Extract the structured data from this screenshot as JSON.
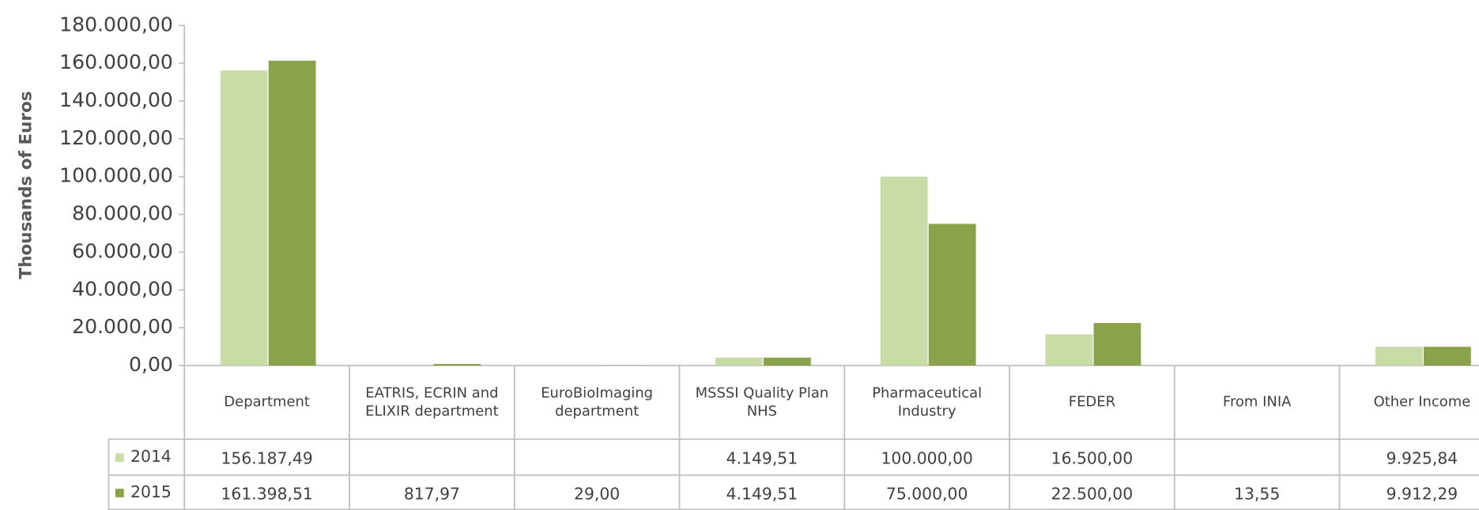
{
  "chart_data": {
    "type": "bar",
    "y_axis_title": "Thousands of Euros",
    "categories": [
      "Department",
      "EATRIS, ECRIN and ELIXIR department",
      "EuroBioImaging department",
      "MSSSI Quality Plan NHS",
      "Pharmaceutical Industry",
      "FEDER",
      "From INIA",
      "Other Income"
    ],
    "series": [
      {
        "name": "2014",
        "color": "#c9dba6",
        "values": [
          156187.49,
          null,
          null,
          4149.51,
          100000,
          16500,
          null,
          9925.84
        ],
        "value_labels": [
          "156.187,49",
          null,
          null,
          "4.149,51",
          "100.000,00",
          "16.500,00",
          null,
          "9.925,84"
        ]
      },
      {
        "name": "2015",
        "color": "#8aa24a",
        "values": [
          161398.51,
          817.97,
          29,
          4149.51,
          75000,
          22500,
          13.55,
          9912.29
        ],
        "value_labels": [
          "161.398,51",
          "817,97",
          "29,00",
          "4.149,51",
          "75.000,00",
          "22.500,00",
          "13,55",
          "9.912,29"
        ]
      }
    ],
    "ylim": [
      0,
      180000
    ],
    "yticks": [
      {
        "value": 0,
        "label": "0,00"
      },
      {
        "value": 20000,
        "label": "20.000,00"
      },
      {
        "value": 40000,
        "label": "40.000,00"
      },
      {
        "value": 60000,
        "label": "60.000,00"
      },
      {
        "value": 80000,
        "label": "80.000,00"
      },
      {
        "value": 100000,
        "label": "100.000,00"
      },
      {
        "value": 120000,
        "label": "120.000,00"
      },
      {
        "value": 140000,
        "label": "140.000,00"
      },
      {
        "value": 160000,
        "label": "160.000,00"
      },
      {
        "value": 180000,
        "label": "180.000,00"
      }
    ],
    "grid": false
  }
}
